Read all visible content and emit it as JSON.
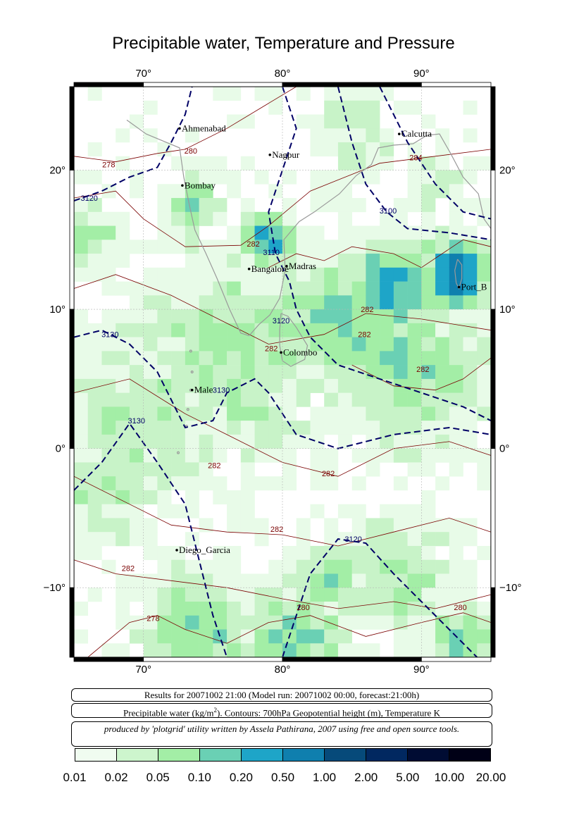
{
  "title": "Precipitable water, Temperature and Pressure",
  "map": {
    "lon_range": [
      65,
      95
    ],
    "lat_range": [
      -15,
      26
    ],
    "lon_ticks": [
      {
        "value": 70,
        "label": "70°"
      },
      {
        "value": 80,
        "label": "80°"
      },
      {
        "value": 90,
        "label": "90°"
      }
    ],
    "lat_ticks": [
      {
        "value": 20,
        "label": "20°"
      },
      {
        "value": 10,
        "label": "10°"
      },
      {
        "value": 0,
        "label": "0°"
      },
      {
        "value": -10,
        "label": "−10°"
      }
    ],
    "grid": true
  },
  "cities": [
    {
      "name": "Ahmenabad",
      "lon": 72.6,
      "lat": 23.0
    },
    {
      "name": "Nagpur",
      "lon": 79.1,
      "lat": 21.1
    },
    {
      "name": "Calcutta",
      "lon": 88.4,
      "lat": 22.6
    },
    {
      "name": "Bombay",
      "lon": 72.8,
      "lat": 18.9
    },
    {
      "name": "Madras",
      "lon": 80.3,
      "lat": 13.1
    },
    {
      "name": "Bangalore",
      "lon": 77.6,
      "lat": 12.9
    },
    {
      "name": "Port_B",
      "lon": 92.7,
      "lat": 11.6
    },
    {
      "name": "Colombo",
      "lon": 79.9,
      "lat": 6.9
    },
    {
      "name": "Male",
      "lon": 73.5,
      "lat": 4.2
    },
    {
      "name": "Diego_Garcia",
      "lon": 72.4,
      "lat": -7.3
    }
  ],
  "contour_labels": {
    "temperature": [
      {
        "text": "280",
        "lon": 73.4,
        "lat": 21.2
      },
      {
        "text": "278",
        "lon": 67.5,
        "lat": 20.2
      },
      {
        "text": "284",
        "lon": 89.6,
        "lat": 20.7
      },
      {
        "text": "282",
        "lon": 77.9,
        "lat": 14.5
      },
      {
        "text": "282",
        "lon": 86.1,
        "lat": 9.8
      },
      {
        "text": "282",
        "lon": 85.9,
        "lat": 8.0
      },
      {
        "text": "282",
        "lon": 79.2,
        "lat": 7.0
      },
      {
        "text": "282",
        "lon": 90.1,
        "lat": 5.5
      },
      {
        "text": "282",
        "lon": 75.1,
        "lat": -1.4
      },
      {
        "text": "282",
        "lon": 83.3,
        "lat": -2.0
      },
      {
        "text": "282",
        "lon": 79.6,
        "lat": -6.0
      },
      {
        "text": "282",
        "lon": 68.9,
        "lat": -8.8
      },
      {
        "text": "280",
        "lon": 81.5,
        "lat": -11.6
      },
      {
        "text": "280",
        "lon": 92.8,
        "lat": -11.6
      },
      {
        "text": "278",
        "lon": 70.7,
        "lat": -12.4
      }
    ],
    "pressure": [
      {
        "text": "3120",
        "lon": 66.1,
        "lat": 17.8
      },
      {
        "text": "3100",
        "lon": 87.6,
        "lat": 16.9
      },
      {
        "text": "3110",
        "lon": 79.2,
        "lat": 13.9
      },
      {
        "text": "3120",
        "lon": 79.9,
        "lat": 9.0
      },
      {
        "text": "3130",
        "lon": 67.6,
        "lat": 8.0
      },
      {
        "text": "3130",
        "lon": 75.6,
        "lat": 4.0
      },
      {
        "text": "3130",
        "lon": 69.5,
        "lat": 1.8
      },
      {
        "text": "3120",
        "lon": 85.1,
        "lat": -6.7
      }
    ]
  },
  "info": {
    "results": "Results for 20071002 21:00 (Model run: 20071002 00:00, forecast:21:00h)",
    "description_pre": "Precipitable water (kg/m",
    "description_sup": "2",
    "description_post": ").  Contours: 700hPa Geopotential height (m), Temperature K",
    "credit": "produced by 'plotgrid' utility written by Assela Pathirana, 2007 using free and open source tools."
  },
  "legend": {
    "colors": [
      "#f0fcf0",
      "#cdf5cd",
      "#a3eea6",
      "#6ad0b4",
      "#1ea5c8",
      "#0f7fae",
      "#064a7a",
      "#012860",
      "#000c33",
      "#000016"
    ],
    "labels": [
      "0.01",
      "0.02",
      "0.05",
      "0.10",
      "0.20",
      "0.50",
      "1.00",
      "2.00",
      "5.00",
      "10.00",
      "20.00"
    ]
  },
  "field_colors": {
    "c1": "#e8fbe8",
    "c2": "#c8f3c8",
    "c3": "#a3eea6",
    "c4": "#6ad0b4",
    "c5": "#1ea5c8",
    "c6": "#0f7fae",
    "c7": "#064a7a",
    "coast": "#9a9a9a",
    "temperature_contour": "#7a0000",
    "pressure_contour": "#000066"
  }
}
